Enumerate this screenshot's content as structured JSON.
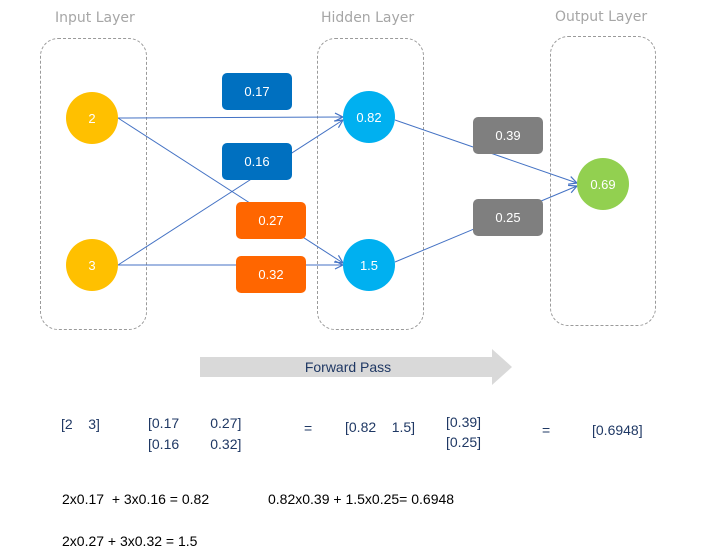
{
  "layers": {
    "input_title": "Input Layer",
    "hidden_title": "Hidden Layer",
    "output_title": "Output Layer"
  },
  "nodes": {
    "input": [
      "2",
      "3"
    ],
    "hidden": [
      "0.82",
      "1.5"
    ],
    "output": "0.69"
  },
  "weights": {
    "w1_top": "0.17",
    "w1_mid": "0.16",
    "w2_top": "0.27",
    "w2_bottom": "0.32",
    "w3_top": "0.39",
    "w3_bottom": "0.25"
  },
  "forward_pass": "Forward Pass",
  "matrix": {
    "input_vector": "[2    3]",
    "weight_row1": "[0.17        0.27]",
    "weight_row2": "[0.16        0.32]",
    "equals1": "=",
    "hidden_vector": "[0.82    1.5]",
    "out_weight_row1": "[0.39]",
    "out_weight_row2": "[0.25]",
    "equals2": "=",
    "result": "[0.6948]"
  },
  "equations": {
    "eq1": "2x0.17  + 3x0.16 = 0.82",
    "eq2": "0.82x0.39 + 1.5x0.25= 0.6948",
    "eq3": "2x0.27 + 3x0.32 = 1.5"
  },
  "colors": {
    "input_node": "#ffc000",
    "hidden_node": "#00b0f0",
    "output_node": "#92d050",
    "weight_blue": "#0070c0",
    "weight_orange": "#ff6600",
    "weight_gray": "#7f7f7f",
    "edge": "#4472c4",
    "arrow": "#d9d9d9"
  }
}
